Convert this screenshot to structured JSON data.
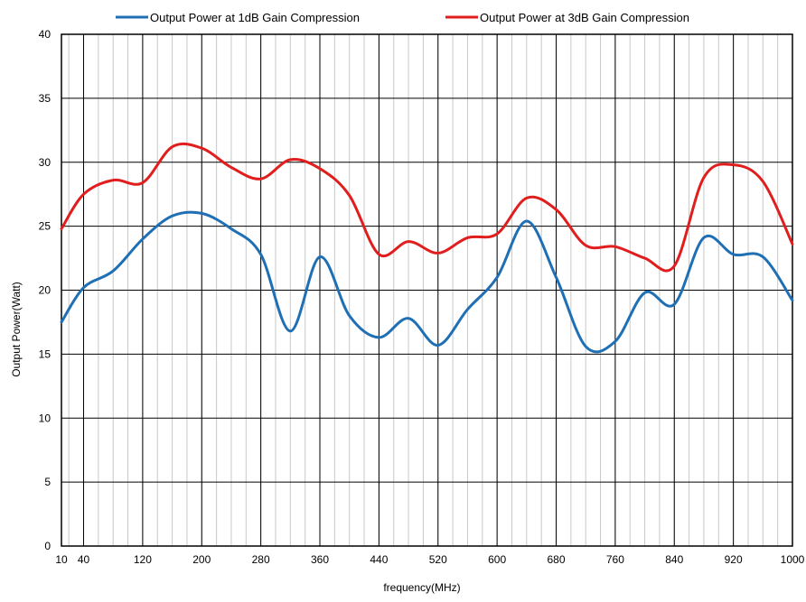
{
  "chart_data": {
    "type": "line",
    "xlabel": "frequency(MHz)",
    "ylabel": "Output Power(Watt)",
    "xlim": [
      10,
      1000
    ],
    "ylim": [
      0,
      40
    ],
    "xticks": [
      10,
      40,
      120,
      200,
      280,
      360,
      440,
      520,
      600,
      680,
      760,
      840,
      920,
      1000
    ],
    "yticks": [
      0,
      5,
      10,
      15,
      20,
      25,
      30,
      35,
      40
    ],
    "grid": true,
    "legend_position": "top",
    "series": [
      {
        "name": "Output Power at 1dB Gain Compression",
        "color": "#1f6fb5",
        "x": [
          10,
          40,
          80,
          120,
          160,
          200,
          240,
          280,
          320,
          360,
          400,
          440,
          480,
          520,
          560,
          600,
          640,
          680,
          720,
          760,
          800,
          840,
          880,
          920,
          960,
          1000
        ],
        "y": [
          17.5,
          20.2,
          21.5,
          24.0,
          25.8,
          26.0,
          24.8,
          22.8,
          16.8,
          22.6,
          18.0,
          16.3,
          17.8,
          15.7,
          18.5,
          21.0,
          25.4,
          21.0,
          15.6,
          16.0,
          19.8,
          18.9,
          24.1,
          22.8,
          22.6,
          19.2
        ]
      },
      {
        "name": "Output Power at 3dB Gain Compression",
        "color": "#e01e1e",
        "x": [
          10,
          40,
          80,
          120,
          160,
          200,
          240,
          280,
          320,
          360,
          400,
          440,
          480,
          520,
          560,
          600,
          640,
          680,
          720,
          760,
          800,
          840,
          880,
          920,
          960,
          1000
        ],
        "y": [
          24.8,
          27.5,
          28.6,
          28.4,
          31.2,
          31.1,
          29.6,
          28.7,
          30.2,
          29.5,
          27.4,
          22.8,
          23.8,
          22.9,
          24.1,
          24.4,
          27.2,
          26.3,
          23.5,
          23.4,
          22.5,
          21.9,
          28.8,
          29.8,
          28.5,
          23.6
        ]
      }
    ]
  }
}
